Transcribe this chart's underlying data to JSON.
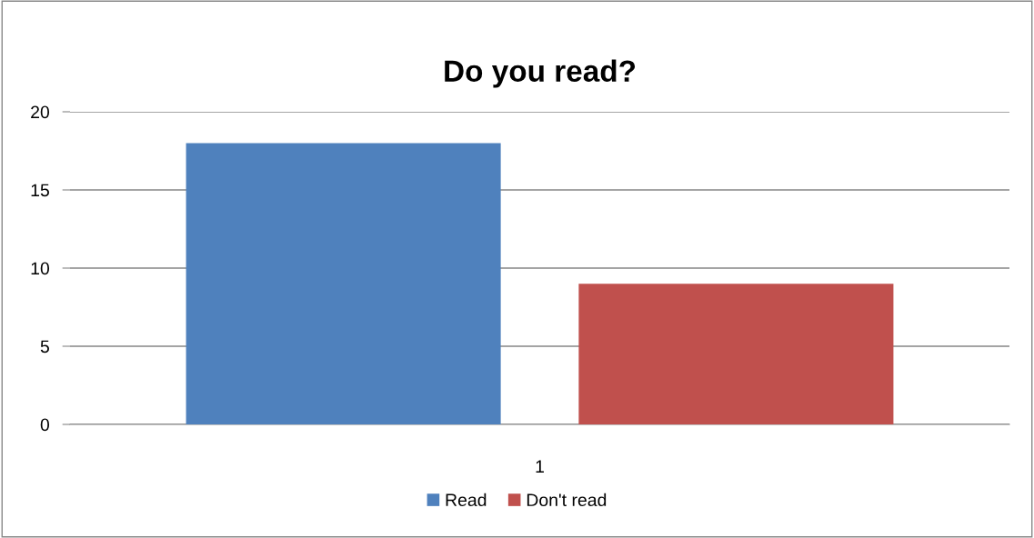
{
  "chart_data": {
    "type": "bar",
    "title": "Do you read?",
    "categories": [
      "1"
    ],
    "series": [
      {
        "name": "Read",
        "color": "#4f81bd",
        "values": [
          18
        ]
      },
      {
        "name": "Don't read",
        "color": "#c0504d",
        "values": [
          9
        ]
      }
    ],
    "ylim": [
      0,
      20
    ],
    "yticks": [
      0,
      5,
      10,
      15,
      20
    ],
    "grid": "y",
    "legend": "bottom"
  }
}
